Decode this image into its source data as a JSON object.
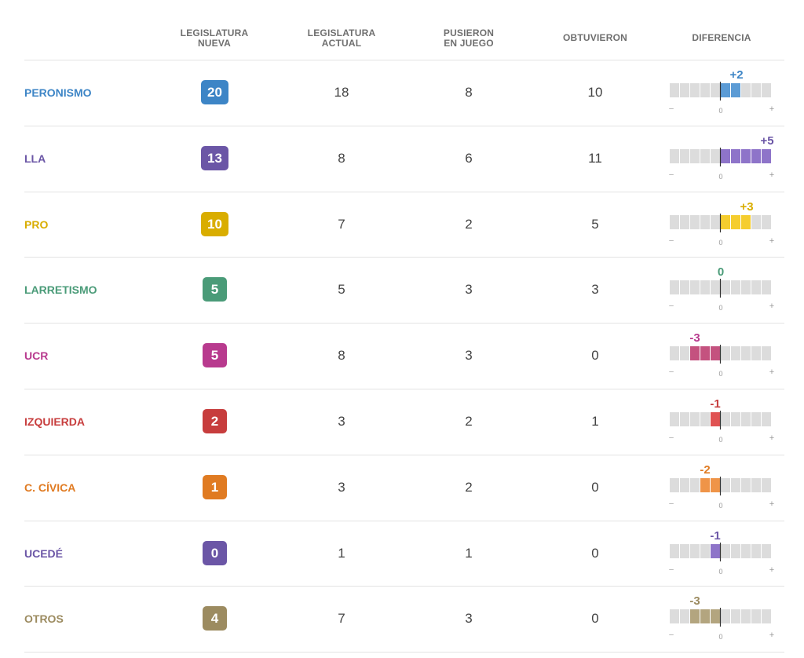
{
  "headers": {
    "nueva": [
      "LEGISLATURA",
      "NUEVA"
    ],
    "actual": [
      "LEGISLATURA",
      "ACTUAL"
    ],
    "juego": [
      "PUSIERON",
      "EN JUEGO"
    ],
    "obtuvieron": [
      "OBTUVIERON"
    ],
    "diferencia": [
      "DIFERENCIA"
    ]
  },
  "scale_labels": {
    "minus": "–",
    "zero": "0",
    "plus": "+"
  },
  "colors": {
    "empty_cell": "#dcdcdc",
    "zero_line": "#333333",
    "divider": "#e3e3e3"
  },
  "chart_data": {
    "type": "table",
    "diff_scale": [
      -5,
      5
    ],
    "columns": [
      "Legislatura nueva",
      "Legislatura actual",
      "Pusieron en juego",
      "Obtuvieron",
      "Diferencia"
    ],
    "rows": [
      {
        "party": "PERONISMO",
        "nueva": "20",
        "actual": "18",
        "juego": "8",
        "obtuvieron": "10",
        "diff": 2,
        "diff_label": "+2",
        "color": "#3d85c6",
        "bar_color": "#5b9bd5"
      },
      {
        "party": "LLA",
        "nueva": "13",
        "actual": "8",
        "juego": "6",
        "obtuvieron": "11",
        "diff": 5,
        "diff_label": "+5",
        "color": "#6b56a6",
        "bar_color": "#8e74c9"
      },
      {
        "party": "PRO",
        "nueva": "10",
        "actual": "7",
        "juego": "2",
        "obtuvieron": "5",
        "diff": 3,
        "diff_label": "+3",
        "color": "#d9ad00",
        "bar_color": "#f5cd2e"
      },
      {
        "party": "LARRETISMO",
        "nueva": "5",
        "actual": "5",
        "juego": "3",
        "obtuvieron": "3",
        "diff": 0,
        "diff_label": "0",
        "color": "#4a9b78",
        "bar_color": "#4a9b78"
      },
      {
        "party": "UCR",
        "nueva": "5",
        "actual": "8",
        "juego": "3",
        "obtuvieron": "0",
        "diff": -3,
        "diff_label": "-3",
        "color": "#b83a8e",
        "bar_color": "#c4527f"
      },
      {
        "party": "IZQUIERDA",
        "nueva": "2",
        "actual": "3",
        "juego": "2",
        "obtuvieron": "1",
        "diff": -1,
        "diff_label": "-1",
        "color": "#c73d3d",
        "bar_color": "#e05252"
      },
      {
        "party": "C. CÍVICA",
        "nueva": "1",
        "actual": "3",
        "juego": "2",
        "obtuvieron": "0",
        "diff": -2,
        "diff_label": "-2",
        "color": "#e07b22",
        "bar_color": "#ef9448"
      },
      {
        "party": "UCEDÉ",
        "nueva": "0",
        "actual": "1",
        "juego": "1",
        "obtuvieron": "0",
        "diff": -1,
        "diff_label": "-1",
        "color": "#6b56a6",
        "bar_color": "#8e74c9"
      },
      {
        "party": "OTROS",
        "nueva": "4",
        "actual": "7",
        "juego": "3",
        "obtuvieron": "0",
        "diff": -3,
        "diff_label": "-3",
        "color": "#9c8b60",
        "bar_color": "#b3a57f"
      }
    ]
  }
}
